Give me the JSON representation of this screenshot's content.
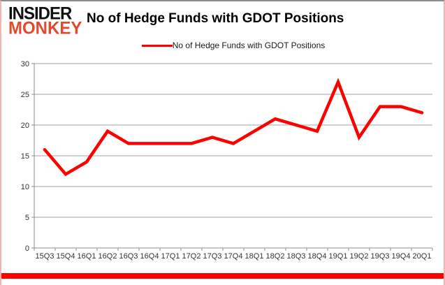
{
  "logo": {
    "line1": "INSIDER",
    "line2": "MONKEY",
    "line1_color": "#111111",
    "line2_color": "#e2492f"
  },
  "title": "No of Hedge Funds with GDOT Positions",
  "legend": {
    "label": "No of Hedge Funds with GDOT Positions",
    "color": "#ff0000"
  },
  "chart_data": {
    "type": "line",
    "title": "No of Hedge Funds with GDOT Positions",
    "categories": [
      "15Q3",
      "15Q4",
      "16Q1",
      "16Q2",
      "16Q3",
      "16Q4",
      "17Q1",
      "17Q2",
      "17Q3",
      "17Q4",
      "18Q1",
      "18Q2",
      "18Q3",
      "18Q4",
      "19Q1",
      "19Q2",
      "19Q3",
      "19Q4",
      "20Q1"
    ],
    "series": [
      {
        "name": "No of Hedge Funds with GDOT Positions",
        "color": "#ff0000",
        "values": [
          16,
          12,
          14,
          19,
          17,
          17,
          17,
          17,
          18,
          17,
          19,
          21,
          20,
          19,
          27,
          18,
          23,
          23,
          22
        ]
      }
    ],
    "xlabel": "",
    "ylabel": "",
    "ylim": [
      0,
      30
    ],
    "yticks": [
      0,
      5,
      10,
      15,
      20,
      25,
      30
    ],
    "grid": true,
    "legend_position": "top-center",
    "grid_color": "#a3a3a3",
    "axis_color": "#8c8c8c",
    "tick_label_color": "#333333",
    "line_width": 4.5
  },
  "decor": {
    "bottom_bar_color": "#ff0000"
  }
}
